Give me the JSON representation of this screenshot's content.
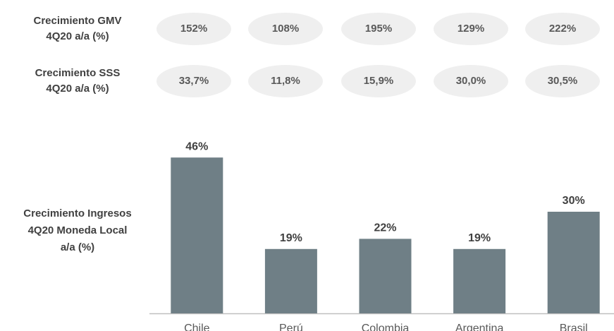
{
  "rows": [
    {
      "label": [
        "Crecimiento GMV",
        "4Q20 a/a (%)"
      ],
      "values": [
        "152%",
        "108%",
        "195%",
        "129%",
        "222%"
      ]
    },
    {
      "label": [
        "Crecimiento SSS",
        "4Q20 a/a (%)"
      ],
      "values": [
        "33,7%",
        "11,8%",
        "15,9%",
        "30,0%",
        "30,5%"
      ]
    }
  ],
  "chart_data": {
    "type": "bar",
    "y_label": [
      "Crecimiento Ingresos",
      "4Q20 Moneda Local",
      "a/a (%)"
    ],
    "categories": [
      "Chile",
      "Perú",
      "Colombia",
      "Argentina",
      "Brasil"
    ],
    "values": [
      46,
      19,
      22,
      19,
      30
    ],
    "value_labels": [
      "46%",
      "19%",
      "22%",
      "19%",
      "30%"
    ],
    "color": "#6f7f86",
    "ylim": [
      0,
      50
    ]
  }
}
